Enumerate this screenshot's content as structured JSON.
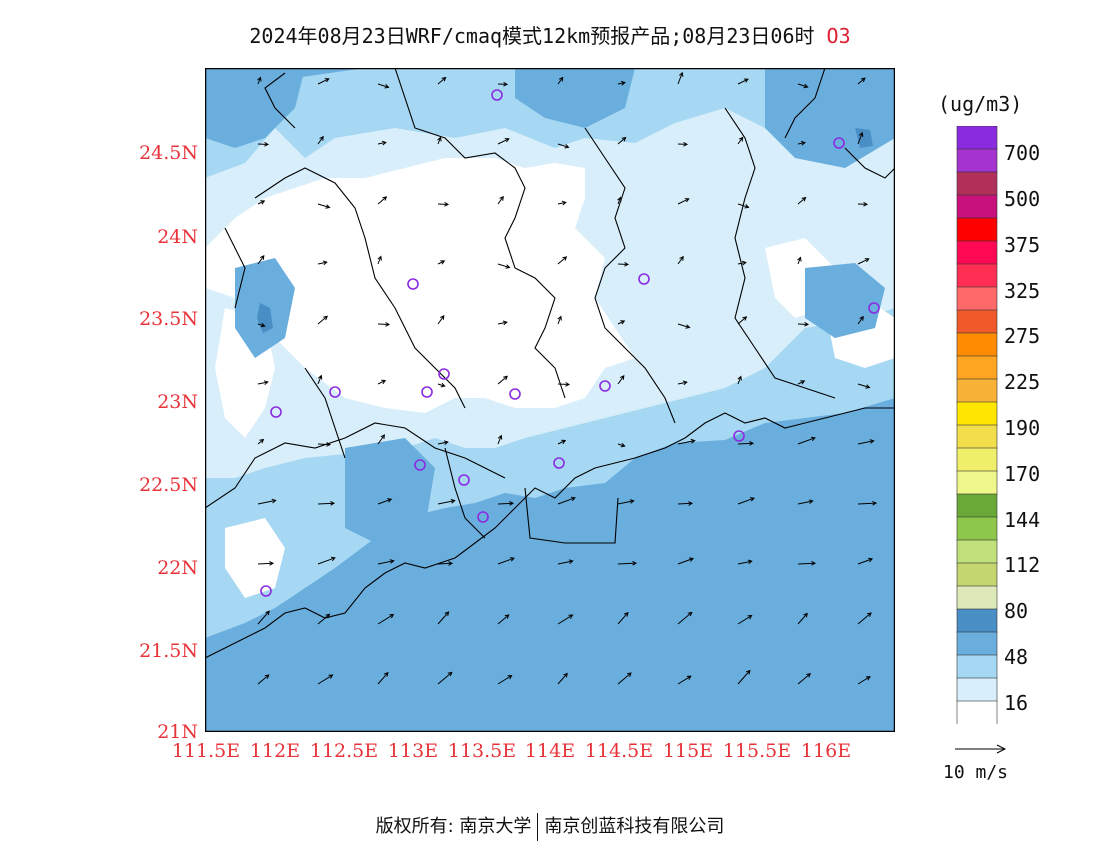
{
  "title": {
    "main": "2024年08月23日WRF/cmaq模式12km预报产品;08月23日06时",
    "pollutant": "O3"
  },
  "lat_labels": [
    "24.5N",
    "24N",
    "23.5N",
    "23N",
    "22.5N",
    "22N",
    "21.5N",
    "21N"
  ],
  "lon_labels": [
    "111.5E",
    "112E",
    "112.5E",
    "113E",
    "113.5E",
    "114E",
    "114.5E",
    "115E",
    "115.5E",
    "116E"
  ],
  "colorbar": {
    "unit": "(ug/m3)",
    "labels": [
      "700",
      "500",
      "375",
      "325",
      "275",
      "225",
      "190",
      "170",
      "144",
      "112",
      "80",
      "48",
      "16"
    ],
    "colors": [
      "#8b2be0",
      "#a433d0",
      "#b0305a",
      "#c8117a",
      "#ff0000",
      "#ff0a52",
      "#ff2f53",
      "#ff6969",
      "#f05a2a",
      "#ff8c00",
      "#ffa521",
      "#f8b336",
      "#ffe600",
      "#f2dd4b",
      "#f0ef6a",
      "#f0f78a",
      "#6aa938",
      "#8dc84a",
      "#bfe07a",
      "#c4d670",
      "#dde9b8",
      "#4a8ec6",
      "#6aaede",
      "#a6d8f3",
      "#d8eefa",
      "#ffffff"
    ]
  },
  "wind_reference": {
    "label": "10 m/s"
  },
  "stations": 17,
  "copyright": {
    "left": "版权所有: 南京大学",
    "right": "南京创蓝科技有限公司"
  },
  "colors": {
    "sea": "#6aaede",
    "medium": "#a6d8f3",
    "light": "#d8eefa",
    "dark": "#4a8ec6",
    "axis_label": "#e8333a",
    "station": "#8b2be0"
  }
}
